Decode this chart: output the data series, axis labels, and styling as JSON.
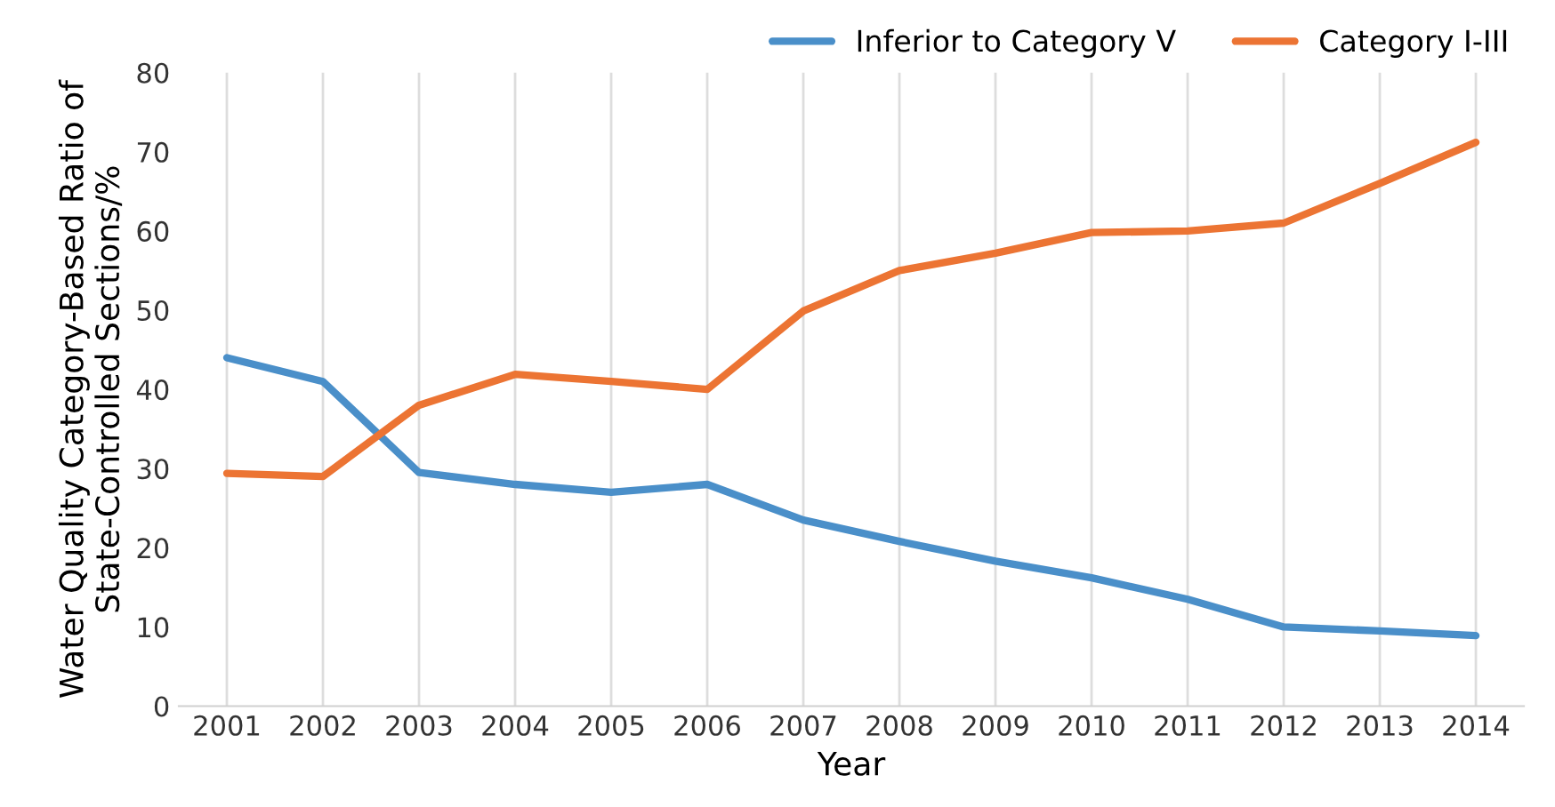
{
  "chart_data": {
    "type": "line",
    "xlabel": "Year",
    "ylabel": "Water Quality Category-Based Ratio of\nState-Controlled Sections/%",
    "categories": [
      "2001",
      "2002",
      "2003",
      "2004",
      "2005",
      "2006",
      "2007",
      "2008",
      "2009",
      "2010",
      "2011",
      "2012",
      "2013",
      "2014"
    ],
    "series": [
      {
        "name": "Inferior to Category V",
        "color": "#4a8fc9",
        "values": [
          44,
          41,
          29.5,
          28,
          27,
          28,
          23.5,
          20.8,
          18.3,
          16.2,
          13.5,
          10,
          9.5,
          8.9
        ]
      },
      {
        "name": "Category I-III",
        "color": "#ec7433",
        "values": [
          29.4,
          29,
          38,
          41.9,
          41,
          40,
          49.9,
          55,
          57.2,
          59.8,
          60,
          61,
          66,
          71.2
        ]
      }
    ],
    "ylim": [
      0,
      80
    ],
    "yticks": [
      0,
      10,
      20,
      30,
      40,
      50,
      60,
      70,
      80
    ],
    "grid": "x",
    "legend": "top right",
    "marker": "none",
    "line_style": "solid"
  }
}
